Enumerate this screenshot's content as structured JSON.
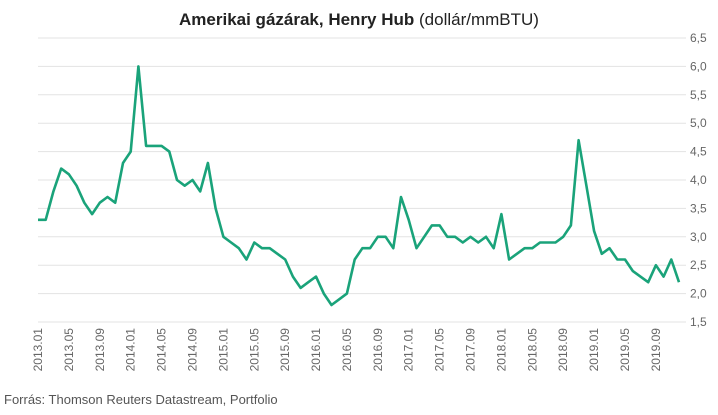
{
  "chart_data": {
    "type": "line",
    "title_bold": "Amerikai gázárak, Henry Hub",
    "title_unit": "(dollár/mmBTU)",
    "source": "Forrás: Thomson Reuters Datastream, Portfolio",
    "ylim": [
      1.5,
      6.5
    ],
    "y_ticks": [
      "1,5",
      "2,0",
      "2,5",
      "3,0",
      "3,5",
      "4,0",
      "4,5",
      "5,0",
      "5,5",
      "6,0",
      "6,5"
    ],
    "x_ticks": [
      "2013.01",
      "2013.05",
      "2013.09",
      "2014.01",
      "2014.05",
      "2014.09",
      "2015.01",
      "2015.05",
      "2015.09",
      "2016.01",
      "2016.05",
      "2016.09",
      "2017.01",
      "2017.05",
      "2017.09",
      "2018.01",
      "2018.05",
      "2018.09",
      "2019.01",
      "2019.05",
      "2019.09"
    ],
    "grid": true,
    "line_color": "#1aa37a",
    "series": [
      {
        "x": [
          "2013-01",
          "2013-02",
          "2013-03",
          "2013-04",
          "2013-05",
          "2013-06",
          "2013-07",
          "2013-08",
          "2013-09",
          "2013-10",
          "2013-11",
          "2013-12",
          "2014-01",
          "2014-02",
          "2014-03",
          "2014-04",
          "2014-05",
          "2014-06",
          "2014-07",
          "2014-08",
          "2014-09",
          "2014-10",
          "2014-11",
          "2014-12",
          "2015-01",
          "2015-02",
          "2015-03",
          "2015-04",
          "2015-05",
          "2015-06",
          "2015-07",
          "2015-08",
          "2015-09",
          "2015-10",
          "2015-11",
          "2015-12",
          "2016-01",
          "2016-02",
          "2016-03",
          "2016-04",
          "2016-05",
          "2016-06",
          "2016-07",
          "2016-08",
          "2016-09",
          "2016-10",
          "2016-11",
          "2016-12",
          "2017-01",
          "2017-02",
          "2017-03",
          "2017-04",
          "2017-05",
          "2017-06",
          "2017-07",
          "2017-08",
          "2017-09",
          "2017-10",
          "2017-11",
          "2017-12",
          "2018-01",
          "2018-02",
          "2018-03",
          "2018-04",
          "2018-05",
          "2018-06",
          "2018-07",
          "2018-08",
          "2018-09",
          "2018-10",
          "2018-11",
          "2018-12",
          "2019-01",
          "2019-02",
          "2019-03",
          "2019-04",
          "2019-05",
          "2019-06",
          "2019-07",
          "2019-08",
          "2019-09",
          "2019-10",
          "2019-11",
          "2019-12"
        ],
        "values": [
          3.3,
          3.3,
          3.8,
          4.2,
          4.1,
          3.9,
          3.6,
          3.4,
          3.6,
          3.7,
          3.6,
          4.3,
          4.5,
          6.0,
          4.6,
          4.6,
          4.6,
          4.5,
          4.0,
          3.9,
          4.0,
          3.8,
          4.3,
          3.5,
          3.0,
          2.9,
          2.8,
          2.6,
          2.9,
          2.8,
          2.8,
          2.7,
          2.6,
          2.3,
          2.1,
          2.2,
          2.3,
          2.0,
          1.8,
          1.9,
          2.0,
          2.6,
          2.8,
          2.8,
          3.0,
          3.0,
          2.8,
          3.7,
          3.3,
          2.8,
          3.0,
          3.2,
          3.2,
          3.0,
          3.0,
          2.9,
          3.0,
          2.9,
          3.0,
          2.8,
          3.4,
          2.6,
          2.7,
          2.8,
          2.8,
          2.9,
          2.9,
          2.9,
          3.0,
          3.2,
          4.7,
          3.9,
          3.1,
          2.7,
          2.8,
          2.6,
          2.6,
          2.4,
          2.3,
          2.2,
          2.5,
          2.3,
          2.6,
          2.2
        ]
      }
    ]
  }
}
